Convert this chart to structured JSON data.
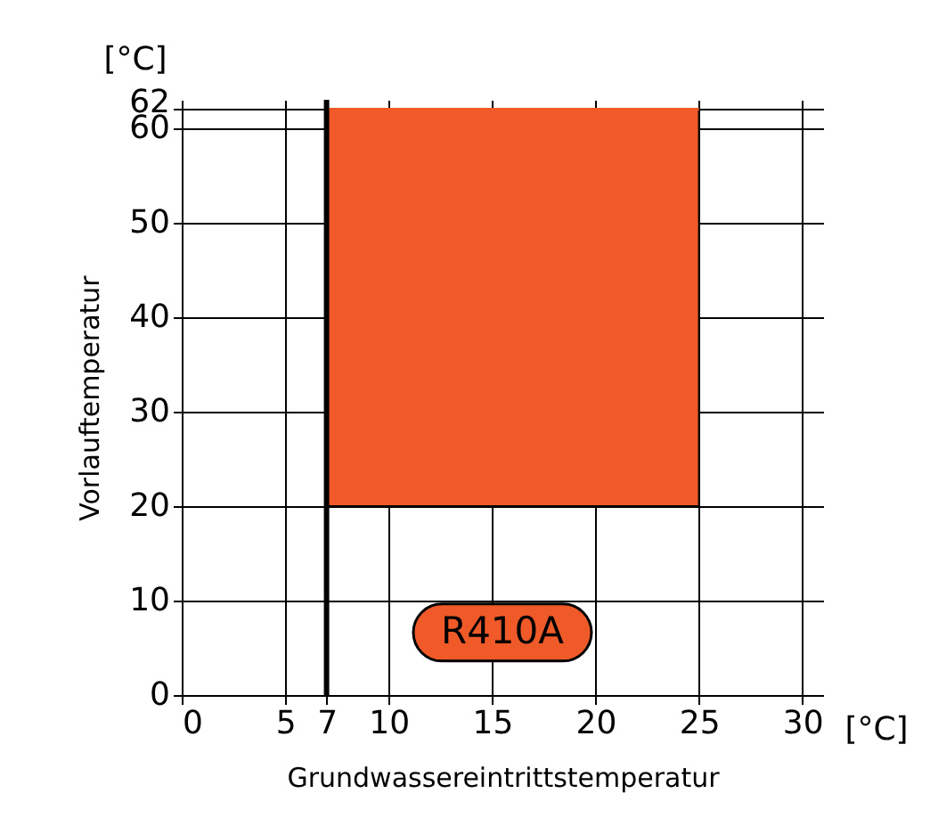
{
  "chart_data": {
    "type": "line",
    "xlabel": "Grundwassereintrittstemperatur",
    "ylabel": "Vorlauftemperatur",
    "annotations": [
      "[°C]",
      "[°C]"
    ],
    "series": [
      {
        "name": "R410A",
        "color": "#f05a28",
        "x": [
          7,
          25
        ],
        "values": [
          62,
          62
        ],
        "lower": [
          20,
          20
        ],
        "upper": [
          62,
          62
        ]
      }
    ],
    "xlim": [
      0,
      31
    ],
    "xticks": [
      0,
      5,
      7,
      10,
      15,
      20,
      25,
      30
    ],
    "ylim": [
      0,
      63
    ],
    "yticks": [
      0,
      10,
      20,
      30,
      40,
      50,
      60,
      62
    ],
    "ref_lines": [
      {
        "axis": "x",
        "value": 7,
        "color": "#000000"
      }
    ],
    "grid": true,
    "legend": "bottom"
  }
}
